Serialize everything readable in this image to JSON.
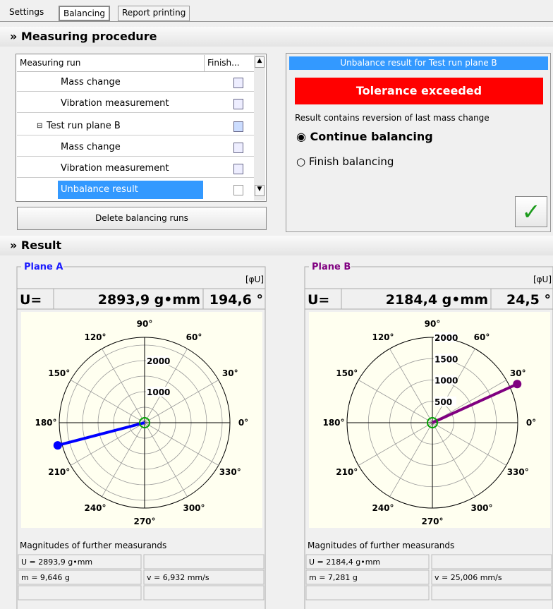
{
  "tabs": [
    "Settings",
    "Balancing",
    "Report printing"
  ],
  "measuring_procedure": {
    "title": "Measuring procedure",
    "columns": [
      "Measuring run",
      "Finish..."
    ],
    "rows": [
      "Mass change",
      "Vibration measurement",
      "Test run plane B",
      "Mass change",
      "Vibration measurement",
      "Unbalance result"
    ],
    "delete_button": "Delete balancing runs"
  },
  "result_panel": {
    "header": "Unbalance result for Test run plane B",
    "status": "Tolerance exceeded",
    "message": "Result contains reversion of last mass change",
    "options": [
      "Continue balancing",
      "Finish balancing"
    ]
  },
  "result": {
    "title": "Result",
    "planes": [
      {
        "title": "Plane A",
        "unit_toggle": "[φU]",
        "u_label": "U=",
        "magnitude": "2893,9 g•mm",
        "angle": "194,6 °",
        "color": "#0000ff",
        "title_color": "#1a1aff",
        "polar": {
          "r": 2893.9,
          "theta": 194.6,
          "rlim": [
            0,
            2750
          ],
          "rgrid": [
            500,
            1000,
            1500,
            2000,
            2500
          ],
          "rticks": [
            1000,
            2000
          ],
          "angle_ticks": [
            {
              "value": 0,
              "label": "0°"
            },
            {
              "value": 30,
              "label": "30°"
            },
            {
              "value": 60,
              "label": "60°"
            },
            {
              "value": 90,
              "label": "90°"
            },
            {
              "value": 120,
              "label": "120°"
            },
            {
              "value": 150,
              "label": "150°"
            },
            {
              "value": 180,
              "label": "180°"
            },
            {
              "value": 210,
              "label": "210°"
            },
            {
              "value": 240,
              "label": "240°"
            },
            {
              "value": 270,
              "label": "270°"
            },
            {
              "value": 300,
              "label": "300°"
            },
            {
              "value": 330,
              "label": "330°"
            }
          ]
        },
        "further": {
          "title": "Magnitudes of further measurands",
          "cells": [
            [
              "U = 2893,9 g•mm"
            ],
            [
              "m = 9,646 g",
              "v = 6,932 mm/s"
            ]
          ]
        }
      },
      {
        "title": "Plane B",
        "unit_toggle": "[φU]",
        "u_label": "U=",
        "magnitude": "2184,4 g•mm",
        "angle": "24,5 °",
        "color": "#800080",
        "title_color": "#800080",
        "polar": {
          "r": 2184.4,
          "theta": 24.5,
          "rlim": [
            0,
            2000
          ],
          "rgrid": [
            500,
            1000,
            1500,
            2000
          ],
          "rticks": [
            500,
            1000,
            1500,
            2000
          ],
          "angle_ticks": [
            {
              "value": 0,
              "label": "0°"
            },
            {
              "value": 30,
              "label": "30°"
            },
            {
              "value": 60,
              "label": "60°"
            },
            {
              "value": 90,
              "label": "90°"
            },
            {
              "value": 120,
              "label": "120°"
            },
            {
              "value": 150,
              "label": "150°"
            },
            {
              "value": 180,
              "label": "180°"
            },
            {
              "value": 210,
              "label": "210°"
            },
            {
              "value": 240,
              "label": "240°"
            },
            {
              "value": 270,
              "label": "270°"
            },
            {
              "value": 300,
              "label": "300°"
            },
            {
              "value": 330,
              "label": "330°"
            }
          ]
        },
        "further": {
          "title": "Magnitudes of further measurands",
          "cells": [
            [
              "U = 2184,4 g•mm"
            ],
            [
              "m = 7,281 g",
              "v = 25,006 mm/s"
            ]
          ]
        }
      }
    ]
  }
}
